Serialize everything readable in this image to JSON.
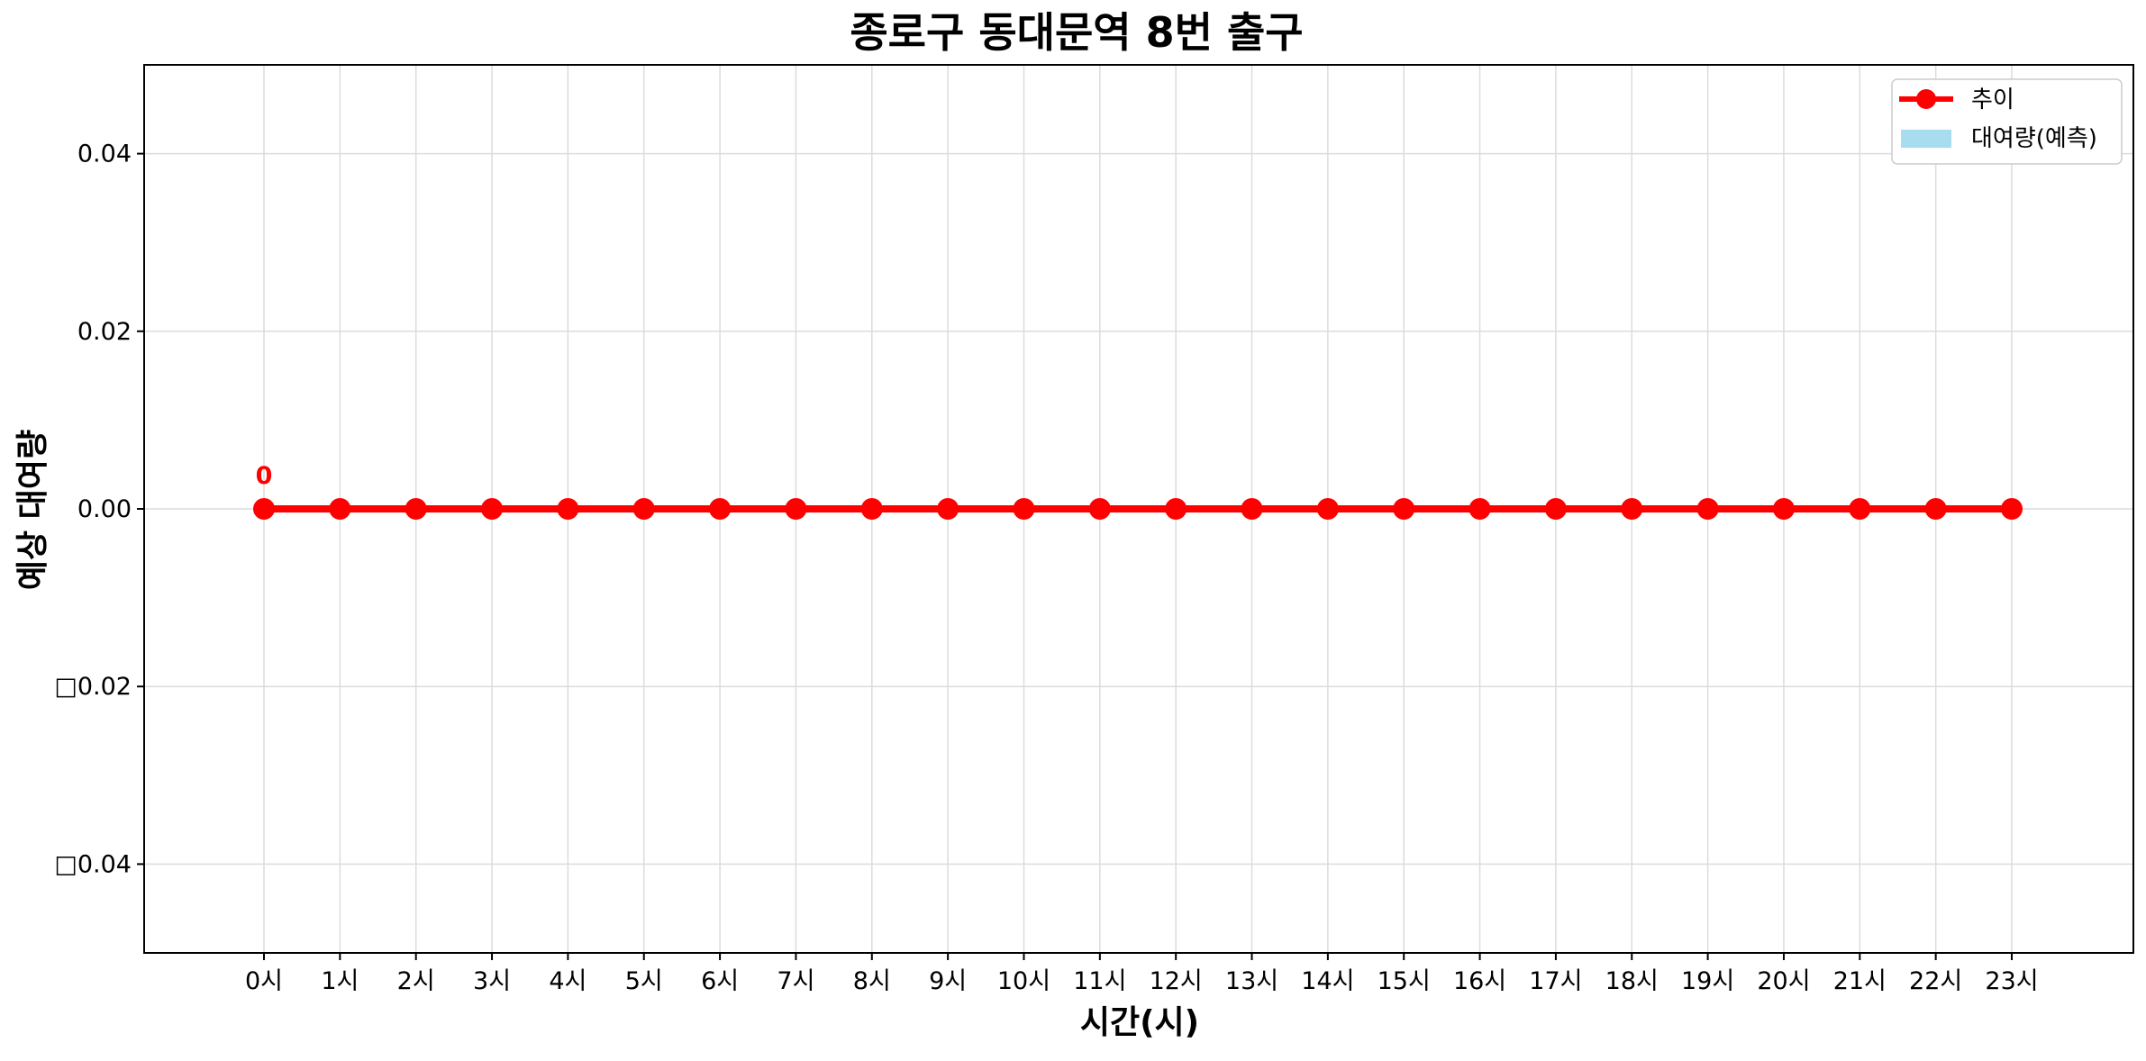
{
  "chart_data": {
    "type": "line",
    "title": "종로구 동대문역 8번 출구",
    "xlabel": "시간(시)",
    "ylabel": "예상 대여량",
    "categories": [
      "0시",
      "1시",
      "2시",
      "3시",
      "4시",
      "5시",
      "6시",
      "7시",
      "8시",
      "9시",
      "10시",
      "11시",
      "12시",
      "13시",
      "14시",
      "15시",
      "16시",
      "17시",
      "18시",
      "19시",
      "20시",
      "21시",
      "22시",
      "23시"
    ],
    "series": [
      {
        "name": "추이",
        "color": "#ff0000",
        "marker": "circle",
        "values": [
          0,
          0,
          0,
          0,
          0,
          0,
          0,
          0,
          0,
          0,
          0,
          0,
          0,
          0,
          0,
          0,
          0,
          0,
          0,
          0,
          0,
          0,
          0,
          0
        ]
      }
    ],
    "bar_series": {
      "name": "대여량(예측)",
      "color": "#a8dcef",
      "values": [
        0,
        0,
        0,
        0,
        0,
        0,
        0,
        0,
        0,
        0,
        0,
        0,
        0,
        0,
        0,
        0,
        0,
        0,
        0,
        0,
        0,
        0,
        0,
        0
      ]
    },
    "ylim": [
      -0.05,
      0.05
    ],
    "yticks": [
      -0.04,
      -0.02,
      0.0,
      0.02,
      0.04
    ],
    "ytick_labels": [
      "□0.04",
      "□0.02",
      "0.00",
      "0.02",
      "0.04"
    ],
    "data_labels": [
      {
        "index": 0,
        "text": "0"
      }
    ],
    "grid": true,
    "legend_position": "top-right"
  }
}
